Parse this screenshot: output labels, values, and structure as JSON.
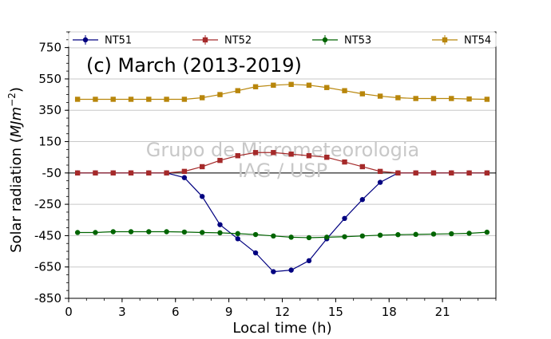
{
  "chart_data": {
    "type": "line",
    "title": "(c) March (2013-2019)",
    "xlabel": "Local time (h)",
    "ylabel": "Solar radiation ($MJm^{-2}$)",
    "ylabel_main": "Solar radiation (",
    "ylabel_unit": "MJm",
    "ylabel_sup": "−2",
    "ylabel_close": ")",
    "watermark": [
      "Grupo de Micrometeorologia",
      "IAG / USP"
    ],
    "xlim": [
      0,
      24
    ],
    "ylim": [
      -850,
      850
    ],
    "xticks": [
      0,
      3,
      6,
      9,
      12,
      15,
      18,
      21
    ],
    "yticks": [
      -850,
      -650,
      -450,
      -250,
      -50,
      150,
      350,
      550,
      750
    ],
    "grid": "horizontal",
    "legend_position": "top",
    "x": [
      0.5,
      1.5,
      2.5,
      3.5,
      4.5,
      5.5,
      6.5,
      7.5,
      8.5,
      9.5,
      10.5,
      11.5,
      12.5,
      13.5,
      14.5,
      15.5,
      16.5,
      17.5,
      18.5,
      19.5,
      20.5,
      21.5,
      22.5,
      23.5
    ],
    "series": [
      {
        "name": "NT51",
        "color": "#000080",
        "marker": "circle",
        "values": [
          -50,
          -50,
          -50,
          -50,
          -50,
          -50,
          -80,
          -200,
          -380,
          -470,
          -560,
          -680,
          -670,
          -610,
          -470,
          -340,
          -220,
          -110,
          -50,
          -50,
          -50,
          -50,
          -50,
          -50
        ]
      },
      {
        "name": "NT52",
        "color": "#a52a2a",
        "marker": "square",
        "values": [
          -50,
          -50,
          -50,
          -50,
          -50,
          -50,
          -40,
          -10,
          30,
          60,
          80,
          80,
          70,
          60,
          50,
          20,
          -10,
          -40,
          -50,
          -50,
          -50,
          -50,
          -50,
          -50
        ]
      },
      {
        "name": "NT53",
        "color": "#006400",
        "marker": "circle",
        "values": [
          -430,
          -430,
          -425,
          -425,
          -425,
          -425,
          -427,
          -430,
          -432,
          -437,
          -443,
          -452,
          -460,
          -463,
          -460,
          -457,
          -452,
          -447,
          -444,
          -442,
          -440,
          -438,
          -435,
          -428
        ]
      },
      {
        "name": "NT54",
        "color": "#b8860b",
        "marker": "square",
        "values": [
          420,
          420,
          420,
          420,
          420,
          420,
          420,
          430,
          450,
          475,
          500,
          510,
          515,
          510,
          495,
          475,
          455,
          440,
          430,
          425,
          425,
          425,
          422,
          420
        ]
      }
    ]
  }
}
